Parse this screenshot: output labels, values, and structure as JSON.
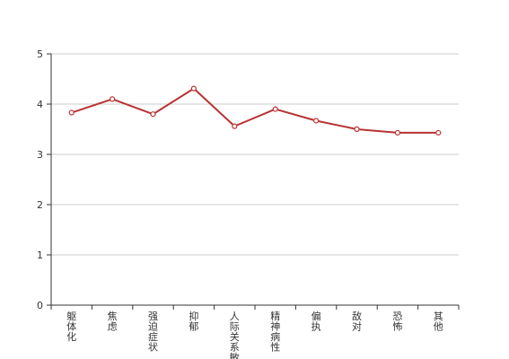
{
  "chart_data": {
    "type": "line",
    "title": "",
    "xlabel": "",
    "ylabel": "",
    "categories": [
      "躯体化",
      "焦虑",
      "强迫症状",
      "抑郁",
      "人际关系敏感",
      "精神病性",
      "偏执",
      "敌对",
      "恐怖",
      "其他"
    ],
    "series": [
      {
        "values": [
          3.83,
          4.1,
          3.8,
          4.31,
          3.56,
          3.9,
          3.67,
          3.5,
          3.43,
          3.43
        ]
      }
    ],
    "ylim": [
      0,
      5
    ],
    "yticks": [
      "0",
      "1",
      "2",
      "3",
      "4",
      "5"
    ],
    "grid": true,
    "legend": "none",
    "colors": {
      "line": "#b83232",
      "grid": "#cccccc",
      "axis": "#333333"
    }
  }
}
